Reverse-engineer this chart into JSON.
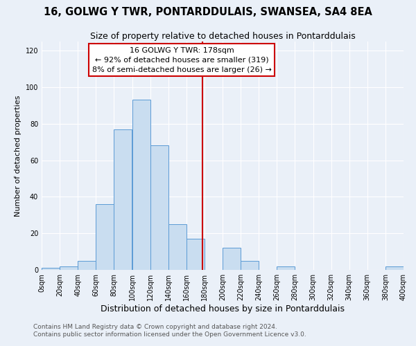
{
  "title": "16, GOLWG Y TWR, PONTARDDULAIS, SWANSEA, SA4 8EA",
  "subtitle": "Size of property relative to detached houses in Pontarddulais",
  "xlabel": "Distribution of detached houses by size in Pontarddulais",
  "ylabel": "Number of detached properties",
  "bar_edges": [
    0,
    20,
    40,
    60,
    80,
    100,
    120,
    140,
    160,
    180,
    200,
    220,
    240,
    260,
    280,
    300,
    320,
    340,
    360,
    380,
    400
  ],
  "bar_heights": [
    1,
    2,
    5,
    36,
    77,
    93,
    68,
    25,
    17,
    0,
    12,
    5,
    0,
    2,
    0,
    0,
    0,
    0,
    0,
    2
  ],
  "bar_facecolor": "#c9ddf0",
  "bar_edgecolor": "#5b9bd5",
  "vline_x": 178,
  "vline_color": "#cc0000",
  "annotation_line1": "16 GOLWG Y TWR: 178sqm",
  "annotation_line2": "← 92% of detached houses are smaller (319)",
  "annotation_line3": "8% of semi-detached houses are larger (26) →",
  "ylim": [
    0,
    125
  ],
  "xlim": [
    0,
    400
  ],
  "footer_line1": "Contains HM Land Registry data © Crown copyright and database right 2024.",
  "footer_line2": "Contains public sector information licensed under the Open Government Licence v3.0.",
  "background_color": "#eaf0f8",
  "plot_bg_color": "#eaf0f8",
  "title_fontsize": 10.5,
  "subtitle_fontsize": 9,
  "xlabel_fontsize": 9,
  "ylabel_fontsize": 8,
  "tick_fontsize": 7,
  "footer_fontsize": 6.5,
  "annotation_fontsize": 8
}
